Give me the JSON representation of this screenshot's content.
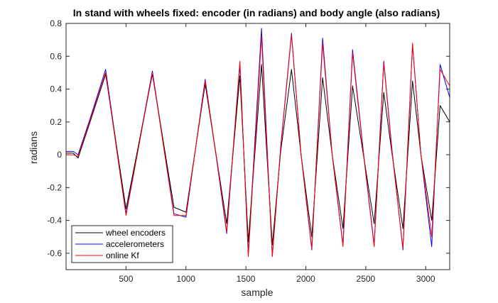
{
  "chart_data": {
    "type": "line",
    "title": "In stand with wheels fixed: encoder (in radians) and body angle (also radians)",
    "xlabel": "sample",
    "ylabel": "radians",
    "xlim": [
      0,
      3200
    ],
    "ylim": [
      -0.7,
      0.8
    ],
    "xticks": [
      500,
      1000,
      1500,
      2000,
      2500,
      3000
    ],
    "yticks": [
      -0.6,
      -0.4,
      -0.2,
      0,
      0.2,
      0.4,
      0.6,
      0.8
    ],
    "grid": false,
    "legend_position": "bottom-left",
    "colors": {
      "wheel_encoders": "#000000",
      "accelerometers": "#0000ff",
      "online_kf": "#ff0000"
    },
    "series": [
      {
        "name": "wheel encoders",
        "color": "#000000",
        "x": [
          0,
          60,
          100,
          200,
          330,
          500,
          720,
          900,
          1000,
          1160,
          1260,
          1340,
          1450,
          1520,
          1630,
          1720,
          1790,
          1880,
          1960,
          2050,
          2140,
          2220,
          2310,
          2390,
          2480,
          2570,
          2650,
          2720,
          2810,
          2890,
          2960,
          3050,
          3120,
          3200
        ],
        "y": [
          0.01,
          0.01,
          -0.02,
          0.2,
          0.49,
          -0.33,
          0.49,
          -0.32,
          -0.35,
          0.43,
          -0.04,
          -0.42,
          0.48,
          -0.53,
          0.55,
          -0.55,
          0.02,
          0.52,
          0.0,
          -0.5,
          0.47,
          0.0,
          -0.45,
          0.42,
          0.0,
          -0.42,
          0.38,
          0.0,
          -0.45,
          0.45,
          0.0,
          -0.4,
          0.3,
          0.2
        ]
      },
      {
        "name": "accelerometers",
        "color": "#0000ff",
        "x": [
          0,
          60,
          100,
          200,
          330,
          500,
          720,
          900,
          1000,
          1160,
          1260,
          1340,
          1450,
          1520,
          1630,
          1720,
          1790,
          1880,
          1960,
          2050,
          2140,
          2220,
          2310,
          2390,
          2480,
          2570,
          2650,
          2720,
          2810,
          2890,
          2960,
          3050,
          3120,
          3200
        ],
        "y": [
          0.02,
          0.02,
          0.0,
          0.22,
          0.52,
          -0.36,
          0.51,
          -0.36,
          -0.38,
          0.46,
          -0.05,
          -0.48,
          0.55,
          -0.6,
          0.77,
          -0.62,
          0.05,
          0.74,
          0.0,
          -0.58,
          0.71,
          0.0,
          -0.55,
          0.64,
          0.02,
          -0.55,
          0.57,
          0.02,
          -0.58,
          0.67,
          0.0,
          -0.56,
          0.55,
          0.35
        ]
      },
      {
        "name": "online Kf",
        "color": "#ff0000",
        "x": [
          0,
          60,
          100,
          200,
          330,
          500,
          720,
          900,
          1000,
          1160,
          1260,
          1340,
          1450,
          1520,
          1630,
          1720,
          1790,
          1880,
          1960,
          2050,
          2140,
          2220,
          2310,
          2390,
          2480,
          2570,
          2650,
          2720,
          2810,
          2890,
          2960,
          3050,
          3120,
          3200
        ],
        "y": [
          0.0,
          0.0,
          -0.01,
          0.21,
          0.5,
          -0.37,
          0.5,
          -0.37,
          -0.37,
          0.45,
          -0.04,
          -0.47,
          0.57,
          -0.62,
          0.72,
          -0.62,
          0.04,
          0.73,
          0.0,
          -0.57,
          0.68,
          0.0,
          -0.56,
          0.62,
          0.01,
          -0.56,
          0.56,
          0.01,
          -0.57,
          0.68,
          0.0,
          -0.5,
          0.52,
          0.42
        ]
      }
    ]
  }
}
